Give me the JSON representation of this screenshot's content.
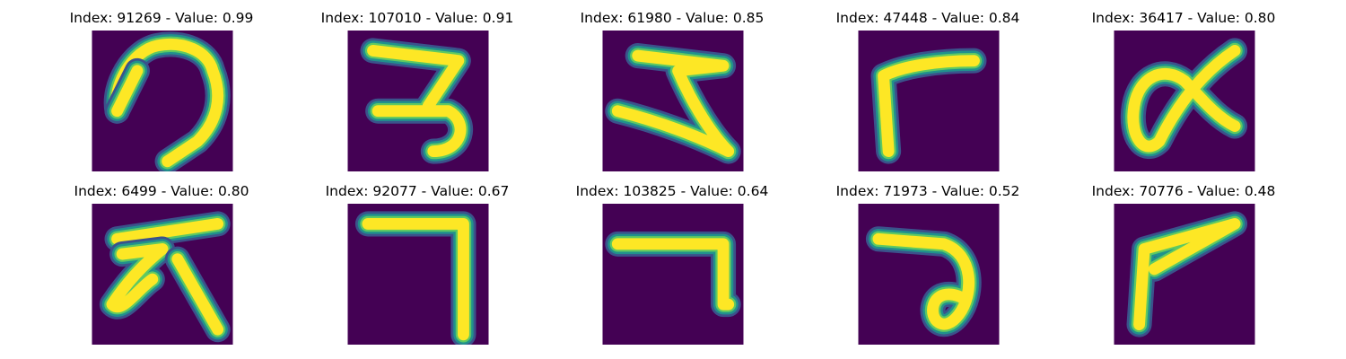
{
  "colors": {
    "background": "#440154",
    "stroke_core": "#fde725",
    "stroke_mid": "#5ec962",
    "stroke_edge": "#21918c",
    "stroke_outer": "#3b528b"
  },
  "panels": [
    {
      "title": "Index: 91269 - Value: 0.99"
    },
    {
      "title": "Index: 107010 - Value: 0.91"
    },
    {
      "title": "Index: 61980 - Value: 0.85"
    },
    {
      "title": "Index: 47448 - Value: 0.84"
    },
    {
      "title": "Index: 36417 - Value: 0.80"
    },
    {
      "title": "Index: 6499 - Value: 0.80"
    },
    {
      "title": "Index: 92077 - Value: 0.67"
    },
    {
      "title": "Index: 103825 - Value: 0.64"
    },
    {
      "title": "Index: 71973 - Value: 0.52"
    },
    {
      "title": "Index: 70776 - Value: 0.48"
    }
  ]
}
